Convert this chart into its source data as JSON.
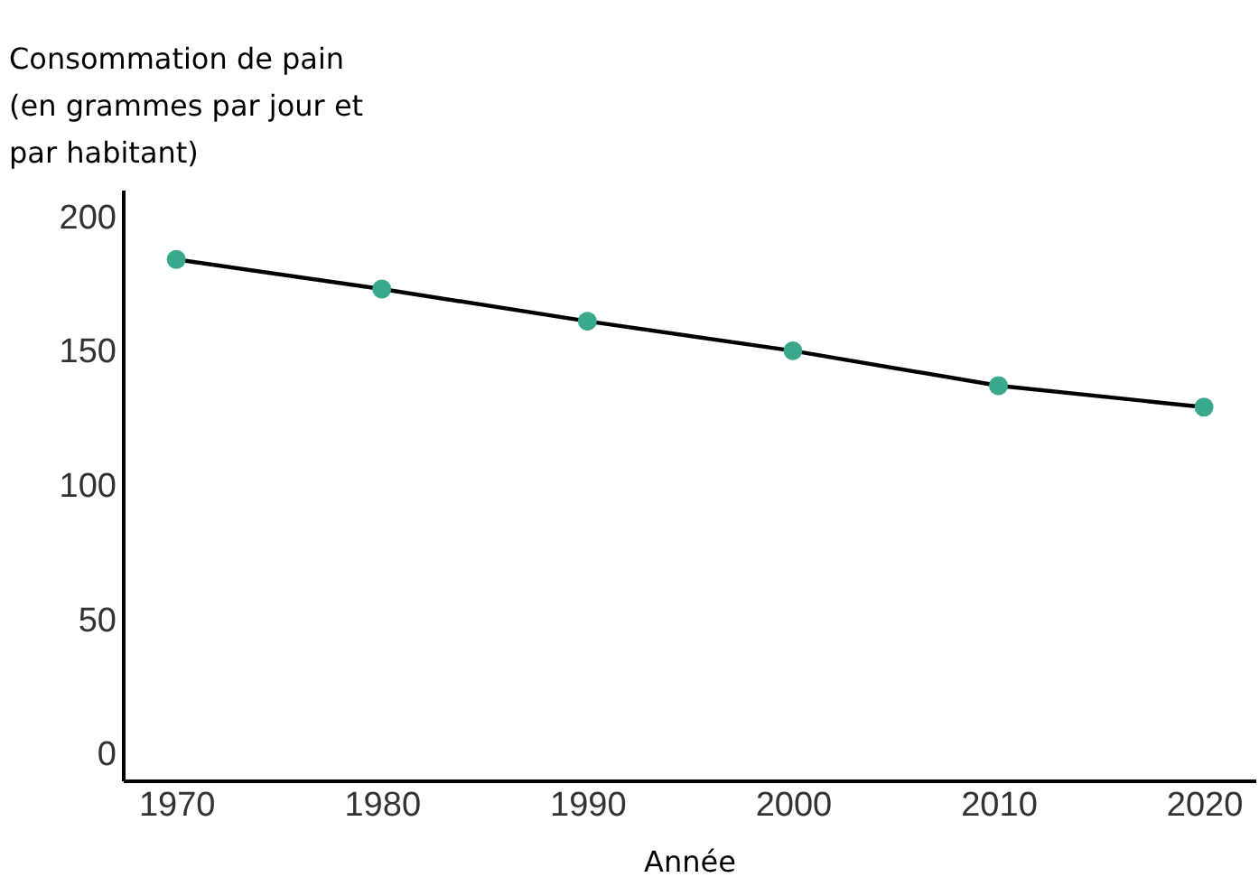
{
  "chart_data": {
    "type": "line",
    "ylabel": "Consommation de pain (en grammes par jour et par habitant)",
    "xlabel": "Année",
    "x": [
      1970,
      1980,
      1990,
      2000,
      2010,
      2020
    ],
    "series": [
      {
        "color": "#000000",
        "colors": [
          "#3aa98b",
          "#3aa98b",
          "#3aa98b",
          "#3aa98b",
          "#3aa98b",
          "#3aa98b"
        ],
        "values": [
          184,
          173,
          161,
          150,
          137,
          129
        ]
      }
    ],
    "xlim": [
      1967.4,
      2022.5
    ],
    "xticks": [
      1970,
      1980,
      1990,
      2000,
      2010,
      2020
    ],
    "ylim": [
      -10,
      210
    ],
    "yticks": [
      0,
      50,
      100,
      150,
      200
    ],
    "grid": false,
    "marker": "circle",
    "line_style": "solid"
  }
}
